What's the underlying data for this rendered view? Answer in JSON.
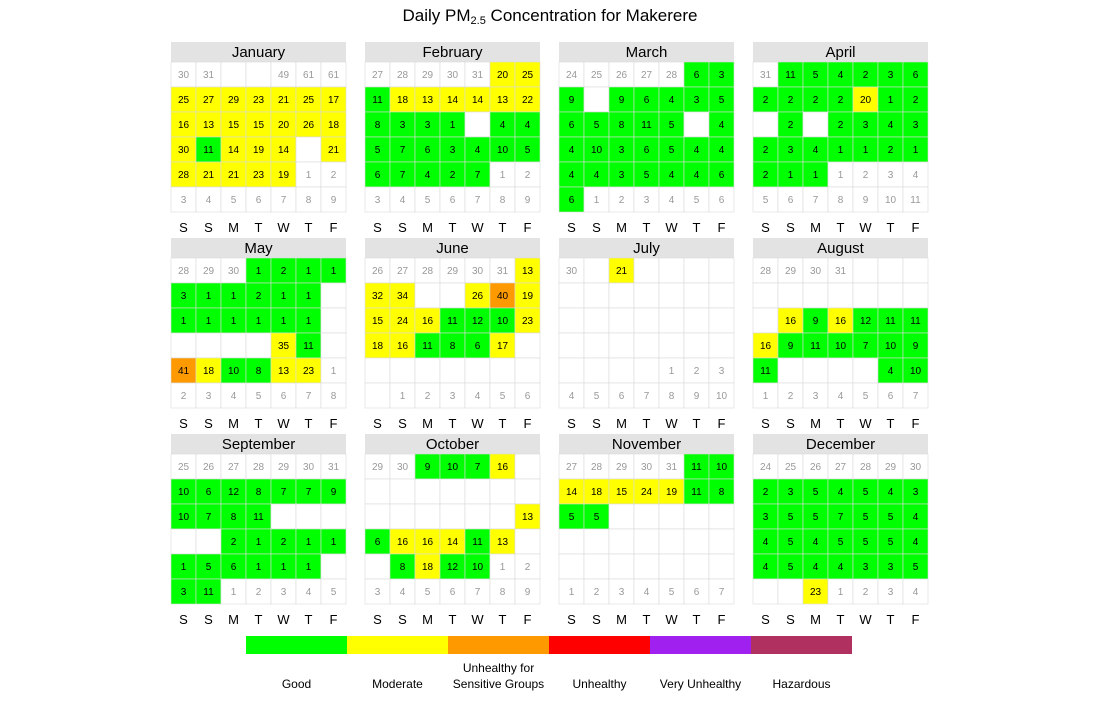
{
  "title_main": "Daily PM",
  "title_sub": "2.5",
  "title_rest": " Concentration for Makerere",
  "weekdays": [
    "S",
    "S",
    "M",
    "T",
    "W",
    "T",
    "F"
  ],
  "legend": [
    {
      "label": "Good",
      "color": "#00ff00"
    },
    {
      "label": "Moderate",
      "color": "#ffff00"
    },
    {
      "label": "Unhealthy for Sensitive Groups",
      "color": "#ff9900"
    },
    {
      "label": "Unhealthy",
      "color": "#ff0000"
    },
    {
      "label": "Very Unhealthy",
      "color": "#a020f0"
    },
    {
      "label": "Hazardous",
      "color": "#b03060"
    }
  ],
  "chart_data": {
    "type": "heatmap",
    "categories_thresholds": [
      12,
      35,
      55,
      150,
      250
    ],
    "months": [
      {
        "name": "January",
        "grid": [
          [
            "30",
            "31",
            "",
            "",
            "49",
            "61",
            "61"
          ],
          [
            25,
            27,
            29,
            23,
            21,
            25,
            17
          ],
          [
            16,
            13,
            15,
            15,
            20,
            26,
            18
          ],
          [
            30,
            11,
            14,
            19,
            14,
            "",
            21
          ],
          [
            28,
            21,
            21,
            23,
            19,
            "1",
            "2"
          ],
          [
            "3",
            "4",
            "5",
            "6",
            "7",
            "8",
            "9"
          ]
        ]
      },
      {
        "name": "February",
        "grid": [
          [
            "27",
            "28",
            "29",
            "30",
            "31",
            20,
            25
          ],
          [
            11,
            18,
            13,
            14,
            14,
            13,
            22
          ],
          [
            8,
            3,
            3,
            1,
            "",
            4,
            4
          ],
          [
            5,
            7,
            6,
            3,
            4,
            10,
            5
          ],
          [
            6,
            7,
            4,
            2,
            7,
            "1",
            "2"
          ],
          [
            "3",
            "4",
            "5",
            "6",
            "7",
            "8",
            "9"
          ]
        ]
      },
      {
        "name": "March",
        "grid": [
          [
            "24",
            "25",
            "26",
            "27",
            "28",
            6,
            3
          ],
          [
            9,
            "",
            9,
            6,
            4,
            3,
            5
          ],
          [
            6,
            5,
            8,
            11,
            5,
            "",
            4
          ],
          [
            4,
            10,
            3,
            6,
            5,
            4,
            4
          ],
          [
            4,
            4,
            3,
            5,
            4,
            4,
            6
          ],
          [
            6,
            "1",
            "2",
            "3",
            "4",
            "5",
            "6"
          ]
        ]
      },
      {
        "name": "April",
        "grid": [
          [
            "31",
            11,
            5,
            4,
            2,
            3,
            6
          ],
          [
            2,
            2,
            2,
            2,
            20,
            1,
            2
          ],
          [
            "",
            2,
            "",
            2,
            3,
            4,
            3
          ],
          [
            2,
            3,
            4,
            1,
            1,
            2,
            1
          ],
          [
            2,
            1,
            1,
            "1",
            "2",
            "3",
            "4"
          ],
          [
            "5",
            "6",
            "7",
            "8",
            "9",
            "10",
            "11"
          ]
        ]
      },
      {
        "name": "May",
        "grid": [
          [
            "28",
            "29",
            "30",
            1,
            2,
            1,
            1
          ],
          [
            3,
            1,
            1,
            2,
            1,
            1,
            ""
          ],
          [
            1,
            1,
            1,
            1,
            1,
            1,
            ""
          ],
          [
            "",
            "",
            "",
            "",
            35,
            11,
            ""
          ],
          [
            41,
            18,
            10,
            8,
            13,
            23,
            "1"
          ],
          [
            "2",
            "3",
            "4",
            "5",
            "6",
            "7",
            "8"
          ]
        ]
      },
      {
        "name": "June",
        "grid": [
          [
            "26",
            "27",
            "28",
            "29",
            "30",
            "31",
            13
          ],
          [
            32,
            34,
            "",
            "",
            26,
            40,
            19
          ],
          [
            15,
            24,
            16,
            11,
            12,
            10,
            23
          ],
          [
            18,
            16,
            11,
            8,
            6,
            17,
            ""
          ],
          [
            "",
            "",
            "",
            "",
            "",
            "",
            ""
          ],
          [
            "",
            "1",
            "2",
            "3",
            "4",
            "5",
            "6"
          ]
        ]
      },
      {
        "name": "July",
        "grid": [
          [
            "30",
            "",
            21,
            "",
            "",
            "",
            ""
          ],
          [
            "",
            "",
            "",
            "",
            "",
            "",
            ""
          ],
          [
            "",
            "",
            "",
            "",
            "",
            "",
            ""
          ],
          [
            "",
            "",
            "",
            "",
            "",
            "",
            ""
          ],
          [
            "",
            "",
            "",
            "",
            "1",
            "2",
            "3"
          ],
          [
            "4",
            "5",
            "6",
            "7",
            "8",
            "9",
            "10"
          ]
        ]
      },
      {
        "name": "August",
        "grid": [
          [
            "28",
            "29",
            "30",
            "31",
            "",
            "",
            ""
          ],
          [
            "",
            "",
            "",
            "",
            "",
            "",
            ""
          ],
          [
            "",
            16,
            9,
            16,
            12,
            11,
            11
          ],
          [
            16,
            9,
            11,
            10,
            7,
            10,
            9
          ],
          [
            11,
            "",
            "",
            "",
            "",
            4,
            10
          ],
          [
            "1",
            "2",
            "3",
            "4",
            "5",
            "6",
            "7"
          ]
        ]
      },
      {
        "name": "September",
        "grid": [
          [
            "25",
            "26",
            "27",
            "28",
            "29",
            "30",
            "31"
          ],
          [
            10,
            6,
            12,
            8,
            7,
            7,
            9
          ],
          [
            10,
            7,
            8,
            11,
            "",
            "",
            ""
          ],
          [
            "",
            "",
            2,
            1,
            2,
            1,
            1
          ],
          [
            1,
            5,
            6,
            1,
            1,
            1,
            ""
          ],
          [
            3,
            11,
            "1",
            "2",
            "3",
            "4",
            "5"
          ]
        ]
      },
      {
        "name": "October",
        "grid": [
          [
            "29",
            "30",
            9,
            10,
            7,
            16,
            ""
          ],
          [
            "",
            "",
            "",
            "",
            "",
            "",
            ""
          ],
          [
            "",
            "",
            "",
            "",
            "",
            "",
            13
          ],
          [
            6,
            16,
            16,
            14,
            11,
            13,
            ""
          ],
          [
            "",
            8,
            18,
            12,
            10,
            "1",
            "2"
          ],
          [
            "3",
            "4",
            "5",
            "6",
            "7",
            "8",
            "9"
          ]
        ]
      },
      {
        "name": "November",
        "grid": [
          [
            "27",
            "28",
            "29",
            "30",
            "31",
            11,
            10
          ],
          [
            14,
            18,
            15,
            24,
            19,
            11,
            8
          ],
          [
            5,
            5,
            "",
            "",
            "",
            "",
            ""
          ],
          [
            "",
            "",
            "",
            "",
            "",
            "",
            ""
          ],
          [
            "",
            "",
            "",
            "",
            "",
            "",
            ""
          ],
          [
            "1",
            "2",
            "3",
            "4",
            "5",
            "6",
            "7"
          ]
        ]
      },
      {
        "name": "December",
        "grid": [
          [
            "24",
            "25",
            "26",
            "27",
            "28",
            "29",
            "30"
          ],
          [
            2,
            3,
            5,
            4,
            5,
            4,
            3
          ],
          [
            3,
            5,
            5,
            7,
            5,
            5,
            4
          ],
          [
            4,
            5,
            4,
            5,
            5,
            5,
            4
          ],
          [
            4,
            5,
            4,
            4,
            3,
            3,
            5
          ],
          [
            "",
            "",
            23,
            "1",
            "2",
            "3",
            "4"
          ]
        ]
      }
    ]
  }
}
